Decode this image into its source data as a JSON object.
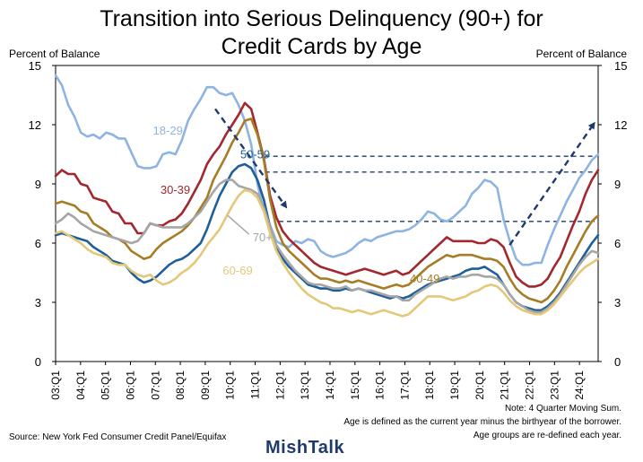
{
  "chart_data": {
    "type": "line",
    "title": "Transition into Serious Delinquency (90+) for Credit Cards by Age",
    "title_lines": [
      "Transition into Serious Delinquency (90+) for",
      "Credit Cards by Age"
    ],
    "ylabel_left": "Percent of Balance",
    "ylabel_right": "Percent of Balance",
    "ylim": [
      0,
      15
    ],
    "yticks": [
      0,
      3,
      6,
      9,
      12,
      15
    ],
    "x_start": 2003.0,
    "x_end": 2024.75,
    "xtick_labels": [
      "03:Q1",
      "04:Q1",
      "05:Q1",
      "06:Q1",
      "07:Q1",
      "08:Q1",
      "09:Q1",
      "10:Q1",
      "11:Q1",
      "12:Q1",
      "13:Q1",
      "14:Q1",
      "15:Q1",
      "16:Q1",
      "17:Q1",
      "18:Q1",
      "19:Q1",
      "20:Q1",
      "21:Q1",
      "22:Q1",
      "23:Q1",
      "24:Q1"
    ],
    "grid": false,
    "reference_lines": [
      10.4,
      9.6,
      7.1
    ],
    "series": [
      {
        "name": "18-29",
        "color": "#8db4e2",
        "values": [
          14.5,
          14.0,
          13.0,
          12.4,
          11.6,
          11.4,
          11.5,
          11.3,
          11.6,
          11.5,
          11.3,
          11.3,
          10.6,
          9.9,
          9.8,
          9.8,
          9.9,
          10.5,
          10.6,
          10.5,
          11.2,
          12.2,
          12.8,
          13.3,
          13.9,
          13.9,
          13.6,
          13.5,
          13.6,
          13.0,
          12.2,
          11.0,
          9.0,
          7.6,
          6.9,
          6.1,
          5.9,
          5.8,
          6.1,
          6.0,
          6.2,
          6.1,
          5.6,
          5.4,
          5.3,
          5.4,
          5.5,
          5.7,
          6.0,
          6.2,
          6.1,
          6.3,
          6.4,
          6.5,
          6.6,
          6.6,
          6.7,
          6.9,
          7.2,
          7.6,
          7.5,
          7.2,
          7.1,
          7.3,
          7.6,
          7.9,
          8.5,
          8.8,
          9.2,
          9.1,
          8.8,
          7.2,
          6.1,
          5.2,
          4.9,
          4.9,
          5.0,
          5.0,
          5.9,
          6.7,
          7.4,
          8.1,
          8.7,
          9.3,
          9.7,
          10.2,
          10.5
        ]
      },
      {
        "name": "30-39",
        "color": "#a3272e",
        "values": [
          9.4,
          9.7,
          9.5,
          9.5,
          9.0,
          8.9,
          8.3,
          8.2,
          8.1,
          7.6,
          7.5,
          7.0,
          7.0,
          6.5,
          6.5,
          7.0,
          6.9,
          6.9,
          7.1,
          7.2,
          7.5,
          8.0,
          8.6,
          9.2,
          10.0,
          10.5,
          10.9,
          11.5,
          12.0,
          12.5,
          13.1,
          12.8,
          11.6,
          10.3,
          8.4,
          7.3,
          6.6,
          6.2,
          5.9,
          5.6,
          5.3,
          5.0,
          4.8,
          4.7,
          4.6,
          4.5,
          4.4,
          4.5,
          4.6,
          4.7,
          4.6,
          4.5,
          4.4,
          4.5,
          4.6,
          4.4,
          4.5,
          4.8,
          5.1,
          5.4,
          5.7,
          6.0,
          6.3,
          6.1,
          6.1,
          6.1,
          6.1,
          6.0,
          6.0,
          6.2,
          6.1,
          5.8,
          5.0,
          4.3,
          4.0,
          3.8,
          3.8,
          3.9,
          4.2,
          4.8,
          5.3,
          6.1,
          6.9,
          7.6,
          8.5,
          9.2,
          9.7
        ]
      },
      {
        "name": "40-49",
        "color": "#a67c25",
        "values": [
          8.0,
          8.1,
          8.0,
          7.9,
          7.6,
          7.5,
          7.0,
          6.8,
          6.6,
          6.3,
          6.2,
          6.0,
          5.6,
          5.4,
          5.2,
          5.3,
          5.7,
          6.0,
          6.2,
          6.4,
          6.6,
          6.9,
          7.3,
          7.8,
          8.3,
          9.2,
          9.8,
          10.4,
          11.1,
          11.6,
          12.2,
          12.3,
          11.5,
          10.2,
          8.2,
          6.8,
          6.0,
          5.6,
          5.3,
          5.0,
          4.7,
          4.4,
          4.2,
          4.2,
          4.1,
          4.0,
          4.1,
          4.0,
          4.1,
          4.0,
          3.9,
          3.8,
          3.7,
          3.8,
          3.9,
          3.8,
          3.9,
          4.2,
          4.5,
          4.8,
          5.0,
          5.2,
          5.4,
          5.3,
          5.4,
          5.4,
          5.4,
          5.3,
          5.2,
          5.2,
          5.1,
          4.8,
          4.2,
          3.7,
          3.4,
          3.2,
          3.1,
          3.0,
          3.2,
          3.6,
          4.1,
          4.8,
          5.4,
          6.0,
          6.6,
          7.1,
          7.4
        ]
      },
      {
        "name": "50-59",
        "color": "#1f5f99",
        "values": [
          6.4,
          6.5,
          6.4,
          6.3,
          6.2,
          6.1,
          5.8,
          5.6,
          5.4,
          5.1,
          5.0,
          4.9,
          4.5,
          4.2,
          4.0,
          4.1,
          4.3,
          4.6,
          4.9,
          5.1,
          5.2,
          5.4,
          5.7,
          6.0,
          6.7,
          7.6,
          8.4,
          9.0,
          9.6,
          9.9,
          10.0,
          9.8,
          9.2,
          8.2,
          6.8,
          5.8,
          5.2,
          4.8,
          4.5,
          4.2,
          3.9,
          3.8,
          3.7,
          3.7,
          3.6,
          3.6,
          3.7,
          3.6,
          3.7,
          3.6,
          3.5,
          3.4,
          3.3,
          3.2,
          3.3,
          3.2,
          3.3,
          3.5,
          3.7,
          3.9,
          4.0,
          4.1,
          4.2,
          4.3,
          4.4,
          4.6,
          4.7,
          4.7,
          4.8,
          4.6,
          4.4,
          3.9,
          3.4,
          3.0,
          2.8,
          2.7,
          2.6,
          2.6,
          2.8,
          3.1,
          3.5,
          4.0,
          4.5,
          5.0,
          5.5,
          6.0,
          6.4
        ]
      },
      {
        "name": "70+",
        "color": "#a6a6a6",
        "values": [
          7.0,
          7.2,
          7.5,
          7.3,
          7.0,
          6.8,
          6.6,
          6.5,
          6.4,
          6.3,
          6.2,
          6.1,
          6.0,
          6.1,
          6.5,
          7.0,
          6.9,
          6.8,
          6.8,
          6.8,
          6.8,
          7.0,
          7.3,
          7.6,
          8.1,
          8.6,
          9.0,
          9.2,
          9.2,
          8.9,
          8.8,
          8.7,
          8.5,
          7.8,
          6.8,
          5.9,
          5.4,
          5.0,
          4.6,
          4.3,
          4.0,
          3.9,
          3.9,
          3.8,
          3.7,
          3.7,
          3.8,
          3.6,
          3.7,
          3.6,
          3.6,
          3.5,
          3.4,
          3.3,
          3.3,
          3.1,
          3.1,
          3.4,
          3.6,
          3.8,
          4.0,
          4.2,
          4.3,
          4.2,
          4.3,
          4.3,
          4.4,
          4.4,
          4.3,
          4.3,
          4.2,
          3.9,
          3.4,
          3.0,
          2.8,
          2.6,
          2.5,
          2.5,
          2.7,
          3.0,
          3.4,
          3.9,
          4.4,
          4.9,
          5.3,
          5.6,
          5.5
        ]
      },
      {
        "name": "60-69",
        "color": "#e3c87a",
        "values": [
          6.5,
          6.6,
          6.4,
          6.2,
          6.0,
          5.7,
          5.5,
          5.4,
          5.3,
          5.0,
          4.9,
          4.9,
          4.6,
          4.4,
          4.3,
          4.4,
          4.1,
          3.9,
          4.0,
          4.2,
          4.5,
          4.7,
          5.0,
          5.4,
          5.9,
          6.3,
          6.7,
          7.3,
          7.9,
          8.4,
          8.7,
          8.6,
          8.3,
          7.6,
          6.5,
          5.6,
          5.0,
          4.5,
          4.1,
          3.7,
          3.4,
          3.2,
          3.0,
          2.9,
          2.7,
          2.7,
          2.6,
          2.5,
          2.6,
          2.5,
          2.4,
          2.5,
          2.6,
          2.5,
          2.4,
          2.3,
          2.4,
          2.7,
          3.0,
          3.3,
          3.3,
          3.3,
          3.2,
          3.1,
          3.2,
          3.3,
          3.5,
          3.6,
          3.8,
          3.9,
          3.8,
          3.5,
          3.1,
          2.8,
          2.6,
          2.5,
          2.4,
          2.4,
          2.6,
          2.9,
          3.3,
          3.7,
          4.1,
          4.5,
          4.8,
          5.0,
          5.2
        ]
      }
    ],
    "series_labels": [
      {
        "name": "18-29",
        "x": 2007.5,
        "y": 11.5
      },
      {
        "name": "30-39",
        "x": 2007.8,
        "y": 8.5
      },
      {
        "name": "50-59",
        "x": 2011.0,
        "y": 10.3
      },
      {
        "name": "70+",
        "x": 2011.3,
        "y": 6.1
      },
      {
        "name": "60-69",
        "x": 2010.3,
        "y": 4.4
      },
      {
        "name": "40-49",
        "x": 2017.8,
        "y": 4.0
      }
    ],
    "annotations": {
      "down_arrow": {
        "from": [
          2009.4,
          12.8
        ],
        "to": [
          2012.2,
          7.9
        ]
      },
      "up_arrow": {
        "from": [
          2021.2,
          5.9
        ],
        "to": [
          2024.55,
          12.0
        ]
      }
    }
  },
  "notes": [
    "Note: 4 Quarter Moving Sum.",
    "Age is defined as the current year minus the birthyear of the borrower.",
    "Age groups are re-defined each year."
  ],
  "source": "Source: New York Fed Consumer Credit Panel/Equifax",
  "brand": "MishTalk",
  "colors": {
    "axis": "#000000",
    "arrow": "#1f3a6e"
  }
}
